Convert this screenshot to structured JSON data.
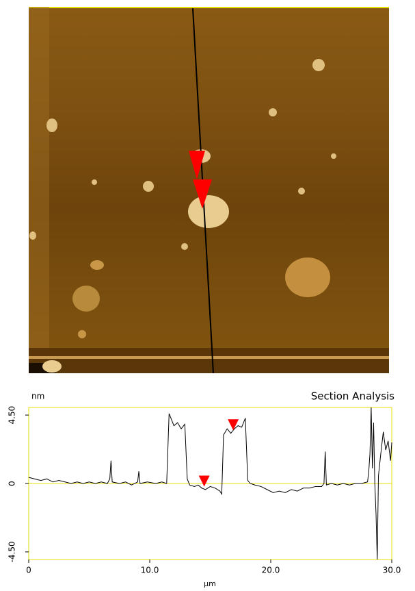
{
  "chart_data": {
    "type": "line",
    "title": "Section Analysis",
    "y_label": "nm",
    "x_label": "µm",
    "xlim": [
      0,
      30
    ],
    "ylim": [
      -5,
      5
    ],
    "xticks": [
      0,
      {
        "value": 10,
        "label": "10.0"
      },
      {
        "value": 20,
        "label": "20.0"
      },
      {
        "value": 30,
        "label": "30.0"
      }
    ],
    "yticks": [
      {
        "value": -4.5,
        "label": "-4.50"
      },
      0,
      {
        "value": 4.5,
        "label": "4.50"
      }
    ],
    "frame_color": "#e6e000",
    "series": [
      {
        "color": "#000000",
        "x": [
          0,
          0.5,
          1,
          1.5,
          2,
          2.5,
          3,
          3.5,
          4,
          4.5,
          5,
          5.5,
          6,
          6.5,
          6.7,
          6.8,
          6.9,
          7.5,
          8,
          8.5,
          9,
          9.1,
          9.2,
          9.8,
          10.5,
          11,
          11.4,
          11.6,
          11.8,
          12,
          12.3,
          12.6,
          12.9,
          13.1,
          13.3,
          13.7,
          14,
          14.3,
          14.6,
          15,
          15.4,
          15.8,
          15.95,
          16.1,
          16.4,
          16.7,
          17,
          17.3,
          17.6,
          17.9,
          18.1,
          18.3,
          18.7,
          19.2,
          19.7,
          20.2,
          20.7,
          21.2,
          21.7,
          22.2,
          22.7,
          23.2,
          23.7,
          24.2,
          24.4,
          24.5,
          24.6,
          25,
          25.5,
          26,
          26.5,
          27,
          27.5,
          28,
          28.1,
          28.2,
          28.3,
          28.4,
          28.5,
          28.6,
          28.7,
          28.8,
          28.9,
          29.1,
          29.3,
          29.5,
          29.7,
          29.9,
          30
        ],
        "values": [
          0.4,
          0.3,
          0.2,
          0.3,
          0.1,
          0.2,
          0.1,
          0.0,
          0.1,
          0.0,
          0.1,
          0.0,
          0.1,
          0.0,
          0.3,
          1.5,
          0.1,
          0.0,
          0.1,
          -0.1,
          0.1,
          0.8,
          0.0,
          0.1,
          0.0,
          0.1,
          0.0,
          4.6,
          4.2,
          3.8,
          4.0,
          3.6,
          3.9,
          0.3,
          -0.1,
          -0.2,
          -0.1,
          -0.3,
          -0.4,
          -0.2,
          -0.3,
          -0.5,
          -0.7,
          3.2,
          3.6,
          3.3,
          3.6,
          3.8,
          3.7,
          4.3,
          0.2,
          0.0,
          -0.1,
          -0.2,
          -0.4,
          -0.6,
          -0.5,
          -0.6,
          -0.4,
          -0.5,
          -0.3,
          -0.3,
          -0.2,
          -0.2,
          0.0,
          2.1,
          -0.1,
          0.0,
          -0.1,
          0.0,
          -0.1,
          0.0,
          0.0,
          0.1,
          0.8,
          2.0,
          5.0,
          1.0,
          4.0,
          0.0,
          -2.0,
          -5.0,
          0.5,
          2.0,
          3.4,
          2.2,
          2.8,
          1.5,
          2.7
        ]
      }
    ],
    "markers": {
      "color": "#ff0000",
      "x": [
        14.5,
        16.9
      ],
      "y": [
        -0.2,
        3.5
      ]
    }
  }
}
